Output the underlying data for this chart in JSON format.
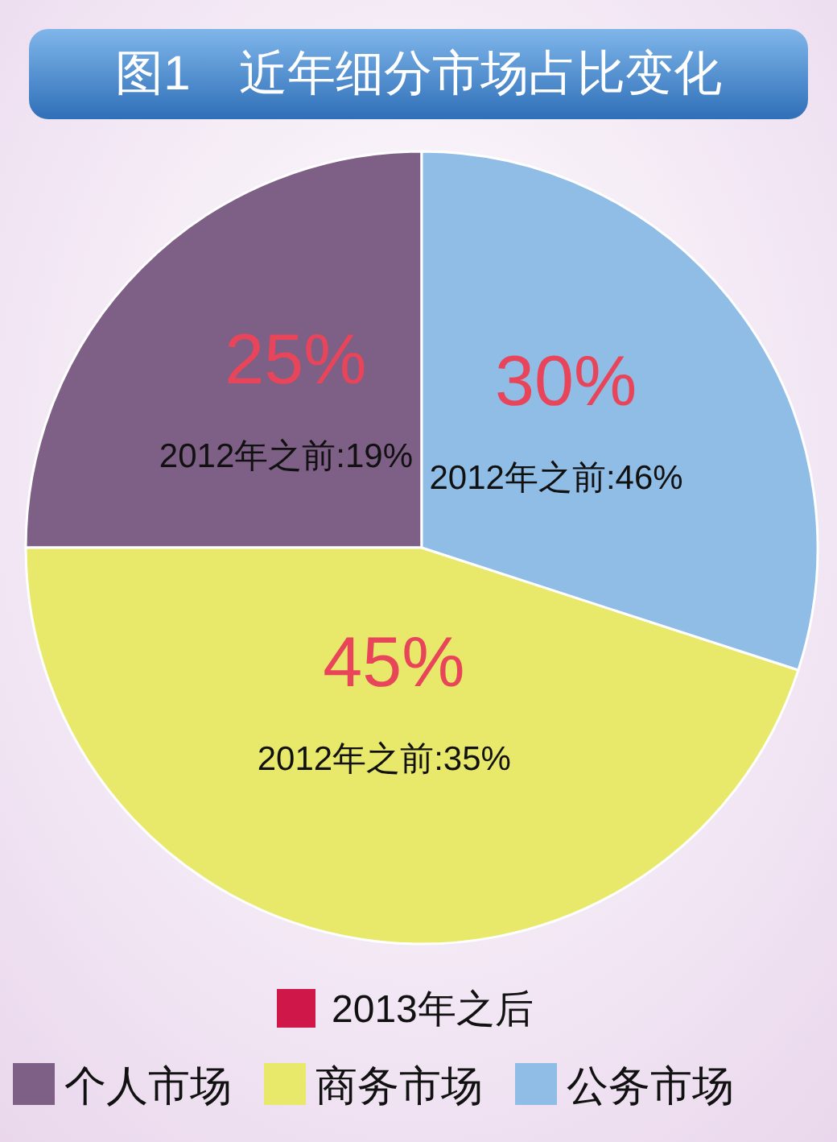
{
  "chart_data": {
    "type": "pie",
    "title": "图1　近年细分市场占比变化",
    "categories": [
      "个人市场",
      "商务市场",
      "公务市场"
    ],
    "values": [
      25,
      45,
      30
    ],
    "colors": [
      "#7e5f86",
      "#e8e86a",
      "#8fbde6"
    ],
    "value_labels": [
      "25%",
      "45%",
      "30%"
    ],
    "legend_title": "2013年之后",
    "legend": "bottom",
    "annotations": [
      {
        "text": "2012年之前:19%",
        "x": "个人市场"
      },
      {
        "text": "2012年之前:35%",
        "x": "商务市场"
      },
      {
        "text": "2012年之前:46%",
        "x": "公务市场"
      }
    ]
  }
}
